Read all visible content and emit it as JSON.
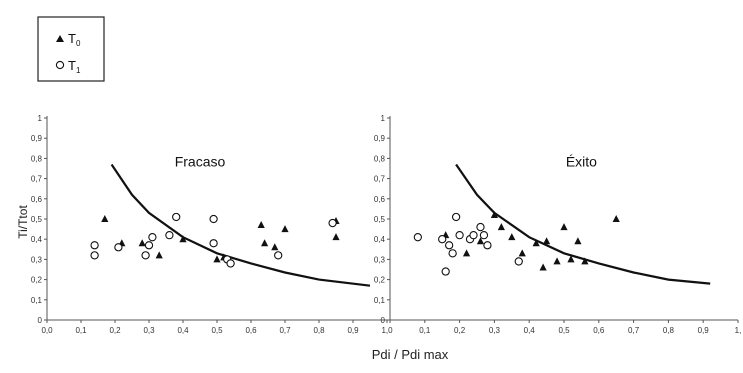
{
  "chart_data": [
    {
      "type": "scatter",
      "annotation": "Fracaso",
      "ylabel": "Ti/Ttot",
      "xlim": [
        0,
        1
      ],
      "ylim": [
        0,
        1
      ],
      "x_ticks": [
        "0,0",
        "0,1",
        "0,2",
        "0,3",
        "0,4",
        "0,5",
        "0,6",
        "0,7",
        "0,8",
        "0,9",
        "1,0"
      ],
      "y_ticks": [
        "0",
        "0,1",
        "0,2",
        "0,3",
        "0,4",
        "0,5",
        "0,6",
        "0,7",
        "0,8",
        "0,9",
        "1"
      ],
      "series": [
        {
          "name": "T0",
          "marker": "triangle",
          "points": [
            [
              0.17,
              0.5
            ],
            [
              0.22,
              0.38
            ],
            [
              0.28,
              0.38
            ],
            [
              0.33,
              0.32
            ],
            [
              0.4,
              0.4
            ],
            [
              0.5,
              0.3
            ],
            [
              0.52,
              0.31
            ],
            [
              0.63,
              0.47
            ],
            [
              0.64,
              0.38
            ],
            [
              0.67,
              0.36
            ],
            [
              0.7,
              0.45
            ],
            [
              0.85,
              0.41
            ],
            [
              0.85,
              0.49
            ]
          ]
        },
        {
          "name": "T1",
          "marker": "circle",
          "points": [
            [
              0.14,
              0.37
            ],
            [
              0.14,
              0.32
            ],
            [
              0.21,
              0.36
            ],
            [
              0.29,
              0.32
            ],
            [
              0.3,
              0.37
            ],
            [
              0.31,
              0.41
            ],
            [
              0.36,
              0.42
            ],
            [
              0.38,
              0.51
            ],
            [
              0.49,
              0.5
            ],
            [
              0.49,
              0.38
            ],
            [
              0.53,
              0.3
            ],
            [
              0.54,
              0.28
            ],
            [
              0.68,
              0.32
            ],
            [
              0.84,
              0.48
            ]
          ]
        }
      ],
      "curve": [
        [
          0.19,
          0.77
        ],
        [
          0.25,
          0.62
        ],
        [
          0.3,
          0.53
        ],
        [
          0.4,
          0.41
        ],
        [
          0.5,
          0.33
        ],
        [
          0.6,
          0.28
        ],
        [
          0.7,
          0.235
        ],
        [
          0.8,
          0.2
        ],
        [
          0.95,
          0.17
        ]
      ]
    },
    {
      "type": "scatter",
      "annotation": "Éxito",
      "xlim": [
        0,
        1
      ],
      "ylim": [
        0,
        1
      ],
      "x_ticks": [
        "",
        "0,1",
        "0,2",
        "0,3",
        "0,4",
        "0,5",
        "0,6",
        "0,7",
        "0,8",
        "0,9",
        "1,"
      ],
      "y_ticks": [
        "0",
        "0,1",
        "0,2",
        "0,3",
        "0,4",
        "0,5",
        "0,6",
        "0,7",
        "0,8",
        "0,9",
        "1"
      ],
      "series": [
        {
          "name": "T0",
          "marker": "triangle",
          "points": [
            [
              0.16,
              0.42
            ],
            [
              0.22,
              0.33
            ],
            [
              0.26,
              0.39
            ],
            [
              0.3,
              0.52
            ],
            [
              0.32,
              0.46
            ],
            [
              0.35,
              0.41
            ],
            [
              0.38,
              0.33
            ],
            [
              0.42,
              0.38
            ],
            [
              0.44,
              0.26
            ],
            [
              0.45,
              0.39
            ],
            [
              0.48,
              0.29
            ],
            [
              0.5,
              0.46
            ],
            [
              0.52,
              0.3
            ],
            [
              0.54,
              0.39
            ],
            [
              0.56,
              0.29
            ],
            [
              0.65,
              0.5
            ]
          ]
        },
        {
          "name": "T1",
          "marker": "circle",
          "points": [
            [
              0.08,
              0.41
            ],
            [
              0.15,
              0.4
            ],
            [
              0.16,
              0.24
            ],
            [
              0.17,
              0.37
            ],
            [
              0.18,
              0.33
            ],
            [
              0.19,
              0.51
            ],
            [
              0.2,
              0.42
            ],
            [
              0.23,
              0.4
            ],
            [
              0.24,
              0.42
            ],
            [
              0.26,
              0.46
            ],
            [
              0.27,
              0.42
            ],
            [
              0.28,
              0.37
            ],
            [
              0.37,
              0.29
            ]
          ]
        }
      ],
      "curve": [
        [
          0.19,
          0.77
        ],
        [
          0.25,
          0.62
        ],
        [
          0.3,
          0.53
        ],
        [
          0.4,
          0.41
        ],
        [
          0.5,
          0.33
        ],
        [
          0.6,
          0.28
        ],
        [
          0.7,
          0.235
        ],
        [
          0.8,
          0.2
        ],
        [
          0.92,
          0.18
        ]
      ]
    }
  ],
  "xlabel": "Pdi / Pdi max",
  "legend": {
    "items": [
      {
        "marker": "triangle",
        "label": "T",
        "sub": "0"
      },
      {
        "marker": "circle",
        "label": "T",
        "sub": "1"
      }
    ]
  },
  "colors": {
    "ink": "#111111",
    "axis": "#555555"
  }
}
